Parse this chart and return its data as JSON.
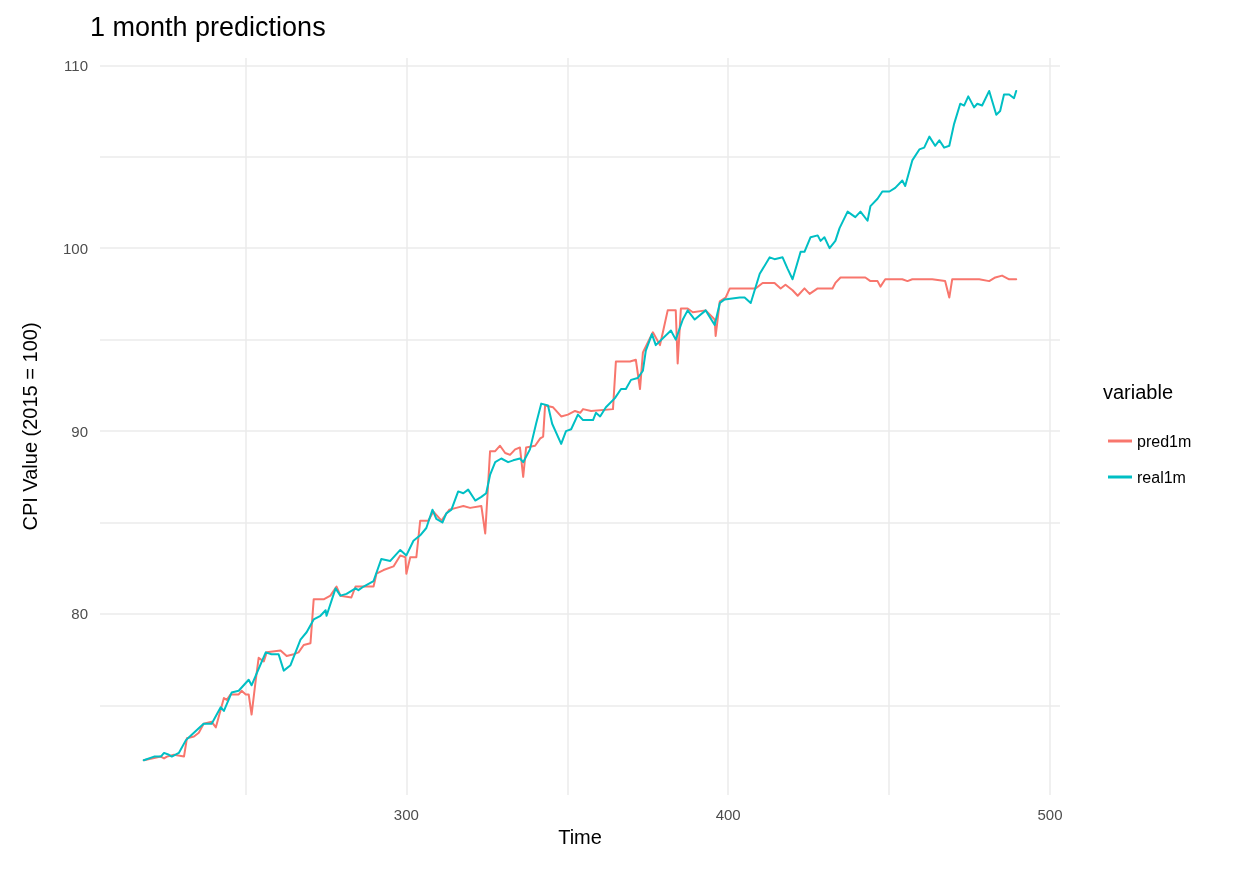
{
  "chart_data": {
    "type": "line",
    "title": "1 month predictions",
    "xlabel": "Time",
    "ylabel": "CPI Value (2015 = 100)",
    "legend_title": "variable",
    "legend": "right",
    "grid": true,
    "marker": "none",
    "line_style": "solid",
    "xlim": [
      204.8,
      503.1
    ],
    "xticks": [
      {
        "value": 250,
        "label": null
      },
      300,
      {
        "value": 350,
        "label": null
      },
      400,
      {
        "value": 450,
        "label": null
      },
      500
    ],
    "ylim": [
      70.1,
      110.4
    ],
    "yticks": [
      {
        "value": 75,
        "label": null
      },
      80,
      {
        "value": 85,
        "label": null
      },
      90,
      {
        "value": 95,
        "label": null
      },
      100,
      {
        "value": 105,
        "label": null
      },
      110
    ],
    "series": [
      {
        "name": "pred1m",
        "color": "#f8766d",
        "x": [
          218.4,
          220.9,
          223.7,
          224.7,
          225.6,
          227.8,
          230.9,
          231.8,
          234.0,
          235.5,
          237.0,
          239.5,
          240.8,
          243.3,
          244.2,
          245.4,
          247.9,
          248.8,
          250.1,
          251.0,
          251.9,
          253.2,
          254.1,
          255.7,
          256.6,
          260.9,
          262.8,
          265.0,
          266.5,
          268.1,
          270.2,
          271.2,
          274.3,
          276.4,
          278.3,
          279.5,
          282.9,
          284.2,
          289.8,
          290.7,
          292.9,
          296.0,
          298.1,
          299.7,
          300.0,
          301.2,
          303.1,
          304.3,
          306.8,
          308.4,
          310.9,
          313.3,
          315.5,
          317.7,
          319.8,
          323.3,
          324.5,
          326.0,
          327.6,
          329.1,
          330.7,
          332.2,
          333.8,
          335.3,
          336.3,
          337.2,
          340.0,
          341.6,
          342.5,
          343.1,
          345.6,
          348.1,
          350.2,
          352.4,
          354.0,
          354.9,
          357.4,
          364.2,
          365.1,
          369.5,
          371.3,
          372.6,
          373.5,
          376.6,
          378.8,
          379.7,
          381.2,
          383.7,
          384.3,
          385.3,
          387.4,
          389.0,
          393.0,
          395.8,
          396.1,
          397.4,
          399.2,
          400.5,
          403.6,
          408.5,
          410.7,
          414.4,
          416.3,
          417.8,
          420.0,
          421.6,
          423.7,
          425.3,
          427.8,
          429.9,
          432.4,
          433.3,
          434.9,
          437.7,
          442.6,
          444.2,
          446.4,
          447.3,
          448.8,
          454.1,
          455.7,
          457.2,
          463.4,
          467.4,
          468.7,
          469.6,
          474.9,
          478.0,
          481.1,
          483.0,
          485.1,
          487.3,
          489.5
        ],
        "values": [
          72.0,
          72.1,
          72.2,
          72.1,
          72.2,
          72.3,
          72.2,
          73.2,
          73.3,
          73.5,
          74.0,
          74.1,
          73.8,
          75.4,
          75.3,
          75.6,
          75.6,
          75.8,
          75.6,
          75.6,
          74.5,
          76.4,
          77.6,
          77.4,
          77.9,
          78.0,
          77.7,
          77.8,
          77.9,
          78.3,
          78.4,
          80.8,
          80.8,
          81.0,
          81.5,
          81.0,
          80.9,
          81.5,
          81.5,
          82.2,
          82.4,
          82.6,
          83.2,
          83.1,
          82.2,
          83.1,
          83.1,
          85.1,
          85.1,
          85.6,
          85.1,
          85.7,
          85.8,
          85.9,
          85.8,
          85.9,
          84.4,
          88.9,
          88.9,
          89.2,
          88.8,
          88.7,
          89.0,
          89.1,
          87.5,
          89.1,
          89.2,
          89.6,
          89.7,
          91.4,
          91.3,
          90.8,
          90.9,
          91.1,
          91.0,
          91.2,
          91.1,
          91.2,
          93.8,
          93.8,
          93.9,
          92.3,
          94.3,
          95.4,
          94.7,
          95.4,
          96.6,
          96.6,
          93.7,
          96.7,
          96.7,
          96.5,
          96.6,
          96.1,
          95.2,
          97.1,
          97.3,
          97.8,
          97.8,
          97.8,
          98.1,
          98.1,
          97.8,
          98.0,
          97.7,
          97.4,
          97.8,
          97.5,
          97.8,
          97.8,
          97.8,
          98.1,
          98.4,
          98.4,
          98.4,
          98.2,
          98.2,
          97.9,
          98.3,
          98.3,
          98.2,
          98.3,
          98.3,
          98.2,
          97.3,
          98.3,
          98.3,
          98.3,
          98.2,
          98.4,
          98.5,
          98.3,
          98.3
        ]
      },
      {
        "name": "real1m",
        "color": "#00bfc4",
        "x": [
          218.4,
          221.6,
          223.7,
          224.7,
          226.2,
          227.1,
          229.3,
          231.5,
          233.3,
          237.0,
          239.5,
          242.3,
          243.3,
          245.7,
          247.9,
          251.0,
          251.9,
          256.3,
          258.1,
          260.3,
          261.9,
          264.0,
          267.1,
          269.0,
          271.2,
          273.3,
          274.9,
          275.2,
          278.0,
          279.5,
          281.4,
          284.2,
          285.1,
          286.7,
          289.8,
          292.2,
          295.0,
          298.1,
          300.0,
          302.2,
          304.3,
          306.2,
          308.1,
          309.3,
          311.2,
          312.4,
          314.0,
          316.1,
          317.7,
          319.2,
          321.4,
          323.3,
          324.8,
          326.0,
          327.6,
          329.5,
          331.6,
          333.2,
          335.3,
          336.3,
          338.4,
          340.3,
          341.9,
          344.0,
          345.3,
          348.1,
          349.6,
          351.2,
          353.3,
          354.9,
          358.0,
          358.9,
          360.2,
          362.0,
          364.8,
          366.7,
          368.2,
          369.8,
          371.9,
          373.5,
          374.4,
          376.3,
          377.5,
          382.2,
          383.7,
          385.9,
          387.4,
          389.6,
          393.0,
          395.8,
          397.4,
          398.9,
          403.6,
          405.1,
          407.0,
          409.8,
          412.9,
          414.4,
          416.9,
          418.4,
          420.0,
          422.5,
          423.7,
          425.6,
          427.8,
          428.7,
          429.9,
          431.5,
          433.3,
          434.6,
          437.1,
          439.5,
          441.1,
          443.3,
          444.2,
          446.4,
          447.9,
          450.1,
          451.9,
          454.1,
          455.0,
          457.2,
          459.4,
          460.9,
          462.5,
          464.3,
          465.6,
          467.1,
          468.7,
          470.2,
          472.1,
          473.3,
          474.6,
          476.4,
          477.4,
          478.9,
          481.1,
          483.3,
          484.5,
          485.7,
          487.3,
          488.8,
          489.5
        ],
        "values": [
          72.0,
          72.2,
          72.2,
          72.4,
          72.3,
          72.2,
          72.4,
          73.1,
          73.4,
          74.0,
          74.0,
          74.9,
          74.7,
          75.7,
          75.8,
          76.4,
          76.1,
          77.9,
          77.8,
          77.8,
          76.9,
          77.2,
          78.6,
          79.0,
          79.7,
          79.9,
          80.2,
          79.9,
          81.4,
          81.0,
          81.1,
          81.4,
          81.3,
          81.5,
          81.8,
          83.0,
          82.9,
          83.5,
          83.2,
          84.0,
          84.3,
          84.7,
          85.7,
          85.2,
          85.0,
          85.5,
          85.7,
          86.7,
          86.6,
          86.8,
          86.2,
          86.4,
          86.6,
          87.6,
          88.3,
          88.5,
          88.3,
          88.4,
          88.5,
          88.3,
          89.0,
          90.4,
          91.5,
          91.4,
          90.4,
          89.3,
          90.0,
          90.1,
          90.9,
          90.6,
          90.6,
          91.0,
          90.8,
          91.3,
          91.8,
          92.3,
          92.3,
          92.8,
          92.9,
          93.3,
          94.4,
          95.3,
          94.7,
          95.5,
          95.0,
          96.1,
          96.6,
          96.1,
          96.6,
          95.8,
          97.0,
          97.2,
          97.3,
          97.3,
          97.0,
          98.6,
          99.5,
          99.4,
          99.5,
          98.9,
          98.3,
          99.8,
          99.8,
          100.6,
          100.7,
          100.4,
          100.6,
          100.0,
          100.4,
          101.1,
          102.0,
          101.7,
          102.0,
          101.5,
          102.3,
          102.7,
          103.1,
          103.1,
          103.3,
          103.7,
          103.4,
          104.8,
          105.4,
          105.5,
          106.1,
          105.6,
          105.9,
          105.5,
          105.6,
          106.8,
          107.9,
          107.8,
          108.3,
          107.7,
          107.9,
          107.8,
          108.6,
          107.3,
          107.5,
          108.4,
          108.4,
          108.2,
          108.6
        ]
      }
    ]
  }
}
